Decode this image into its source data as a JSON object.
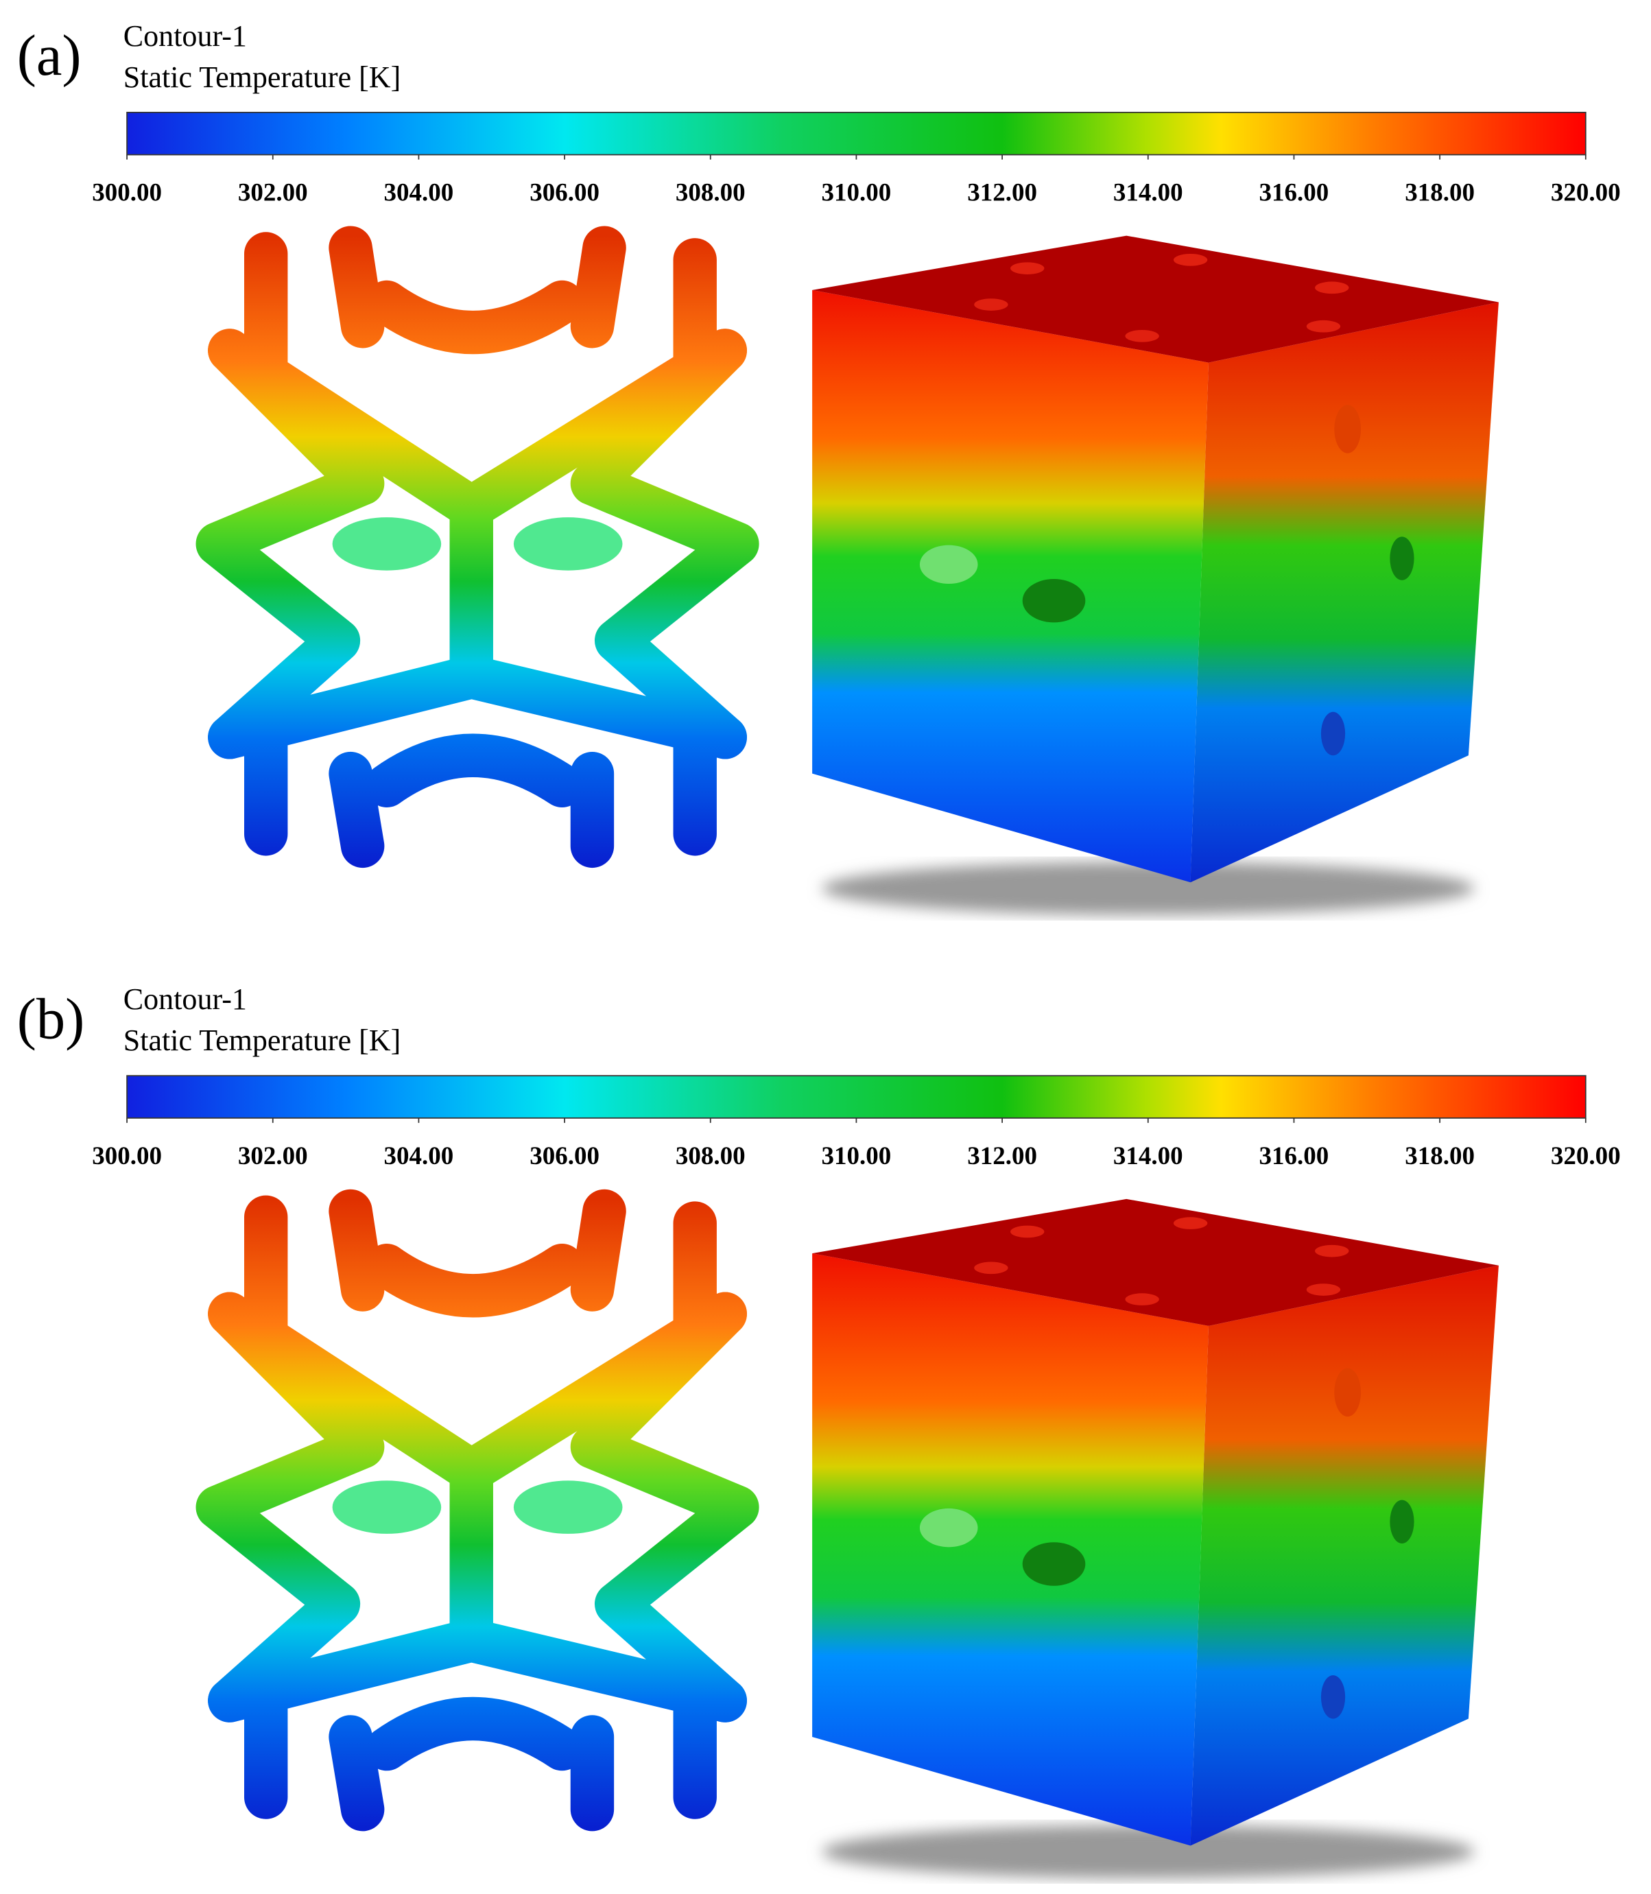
{
  "panels": [
    {
      "label": "(a)",
      "contour": "Contour-1",
      "variable": "Static Temperature [K]",
      "colorbar": {
        "range": [
          300,
          320
        ],
        "ticks": [
          {
            "value": 300,
            "label": "300.00"
          },
          {
            "value": 302,
            "label": "302.00"
          },
          {
            "value": 304,
            "label": "304.00"
          },
          {
            "value": 306,
            "label": "306.00"
          },
          {
            "value": 308,
            "label": "308.00"
          },
          {
            "value": 310,
            "label": "310.00"
          },
          {
            "value": 312,
            "label": "312.00"
          },
          {
            "value": 314,
            "label": "314.00"
          },
          {
            "value": 316,
            "label": "316.00"
          },
          {
            "value": 318,
            "label": "318.00"
          },
          {
            "value": 320,
            "label": "320.00"
          }
        ]
      }
    },
    {
      "label": "(b)",
      "contour": "Contour-1",
      "variable": "Static Temperature [K]",
      "colorbar": {
        "range": [
          300,
          320
        ],
        "ticks": [
          {
            "value": 300,
            "label": "300.00"
          },
          {
            "value": 302,
            "label": "302.00"
          },
          {
            "value": 304,
            "label": "304.00"
          },
          {
            "value": 306,
            "label": "306.00"
          },
          {
            "value": 308,
            "label": "308.00"
          },
          {
            "value": 310,
            "label": "310.00"
          },
          {
            "value": 312,
            "label": "312.00"
          },
          {
            "value": 314,
            "label": "314.00"
          },
          {
            "value": 316,
            "label": "316.00"
          },
          {
            "value": 318,
            "label": "318.00"
          },
          {
            "value": 320,
            "label": "320.00"
          }
        ]
      }
    }
  ]
}
